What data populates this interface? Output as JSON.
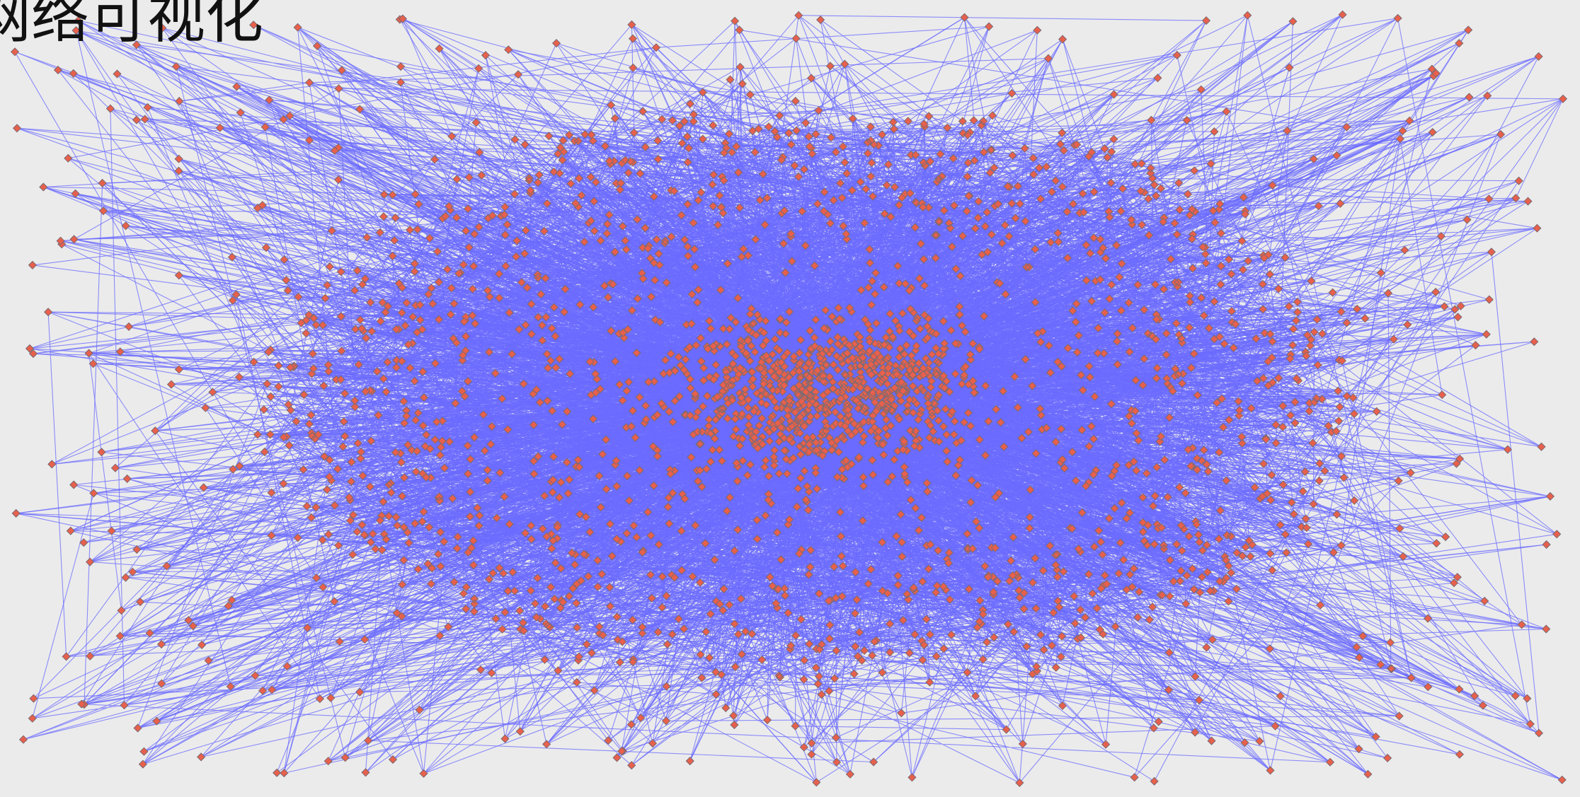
{
  "title": "网络可视化",
  "graph": {
    "style": {
      "background_color": "#ebebeb",
      "edge_color": "#6b6bff",
      "node_fill_color": "#e8604c",
      "node_stroke_color": "#7a6a72",
      "node_shape": "diamond",
      "title_color": "#111111"
    }
  }
}
